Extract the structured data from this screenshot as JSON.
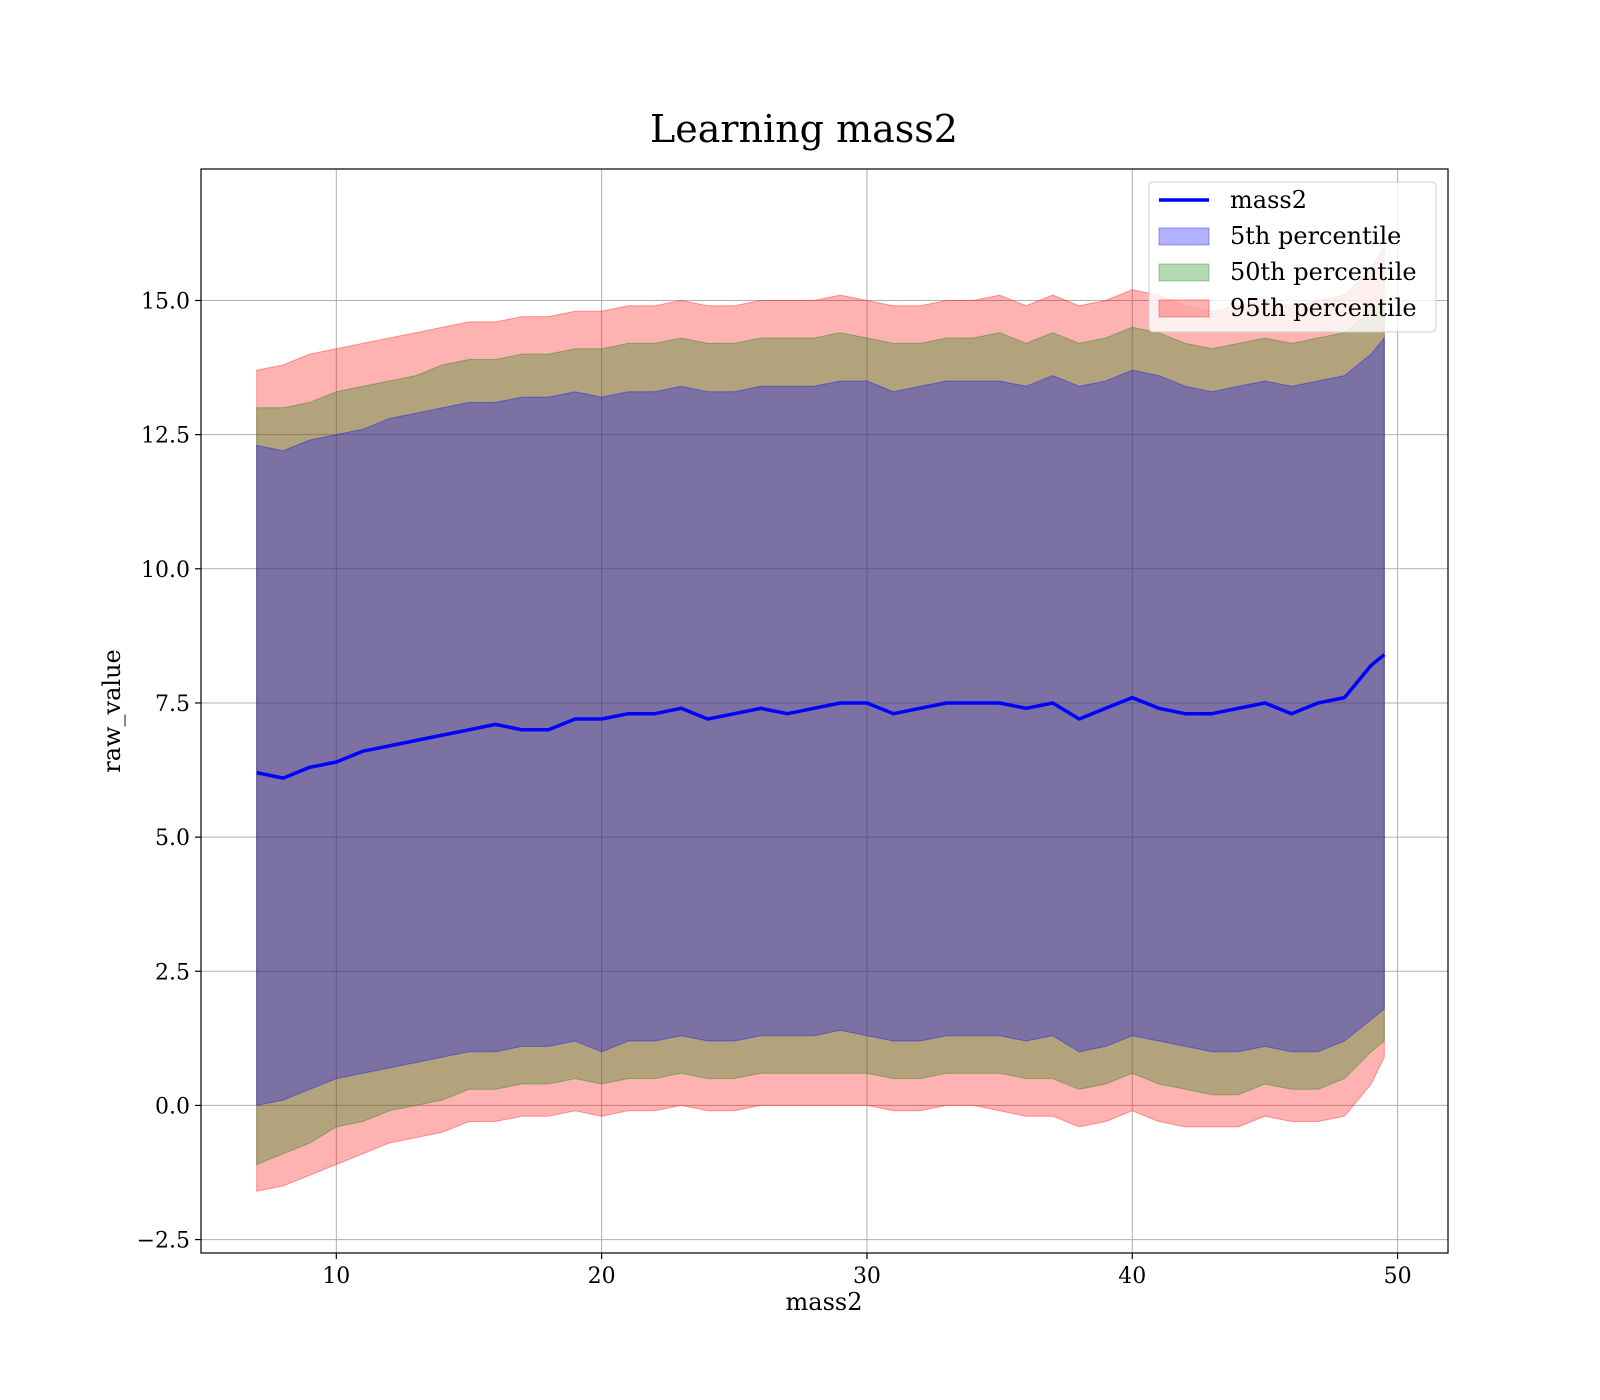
{
  "chart_data": {
    "type": "line",
    "title": "Learning mass2",
    "xlabel": "mass2",
    "ylabel": "raw_value",
    "xlim": [
      4.9,
      51.9
    ],
    "ylim": [
      -2.75,
      17.45
    ],
    "x_ticks": [
      10,
      20,
      30,
      40,
      50
    ],
    "x_tick_labels": [
      "10",
      "20",
      "30",
      "40",
      "50"
    ],
    "y_ticks": [
      -2.5,
      0.0,
      2.5,
      5.0,
      7.5,
      10.0,
      12.5,
      15.0
    ],
    "y_tick_labels": [
      "−2.5",
      "0.0",
      "2.5",
      "5.0",
      "7.5",
      "10.0",
      "12.5",
      "15.0"
    ],
    "grid": true,
    "legend_position": "top-right",
    "x": [
      7.0,
      8.0,
      9.0,
      10.0,
      11.0,
      12.0,
      13.0,
      14.0,
      15.0,
      16.0,
      17.0,
      18.0,
      19.0,
      20.0,
      21.0,
      22.0,
      23.0,
      24.0,
      25.0,
      26.0,
      27.0,
      28.0,
      29.0,
      30.0,
      31.0,
      32.0,
      33.0,
      34.0,
      35.0,
      36.0,
      37.0,
      38.0,
      39.0,
      40.0,
      41.0,
      42.0,
      43.0,
      44.0,
      45.0,
      46.0,
      47.0,
      48.0,
      49.0,
      49.5
    ],
    "series": [
      {
        "name": "mass2",
        "kind": "line",
        "color": "#0000ff",
        "values": [
          6.2,
          6.1,
          6.3,
          6.4,
          6.6,
          6.7,
          6.8,
          6.9,
          7.0,
          7.1,
          7.0,
          7.0,
          7.2,
          7.2,
          7.3,
          7.3,
          7.4,
          7.2,
          7.3,
          7.4,
          7.3,
          7.4,
          7.5,
          7.5,
          7.3,
          7.4,
          7.5,
          7.5,
          7.5,
          7.4,
          7.5,
          7.2,
          7.4,
          7.6,
          7.4,
          7.3,
          7.3,
          7.4,
          7.5,
          7.3,
          7.5,
          7.6,
          8.2,
          8.4
        ]
      },
      {
        "name": "5th percentile",
        "kind": "band",
        "color": "#0000ff",
        "lower": [
          0.0,
          0.1,
          0.3,
          0.5,
          0.6,
          0.7,
          0.8,
          0.9,
          1.0,
          1.0,
          1.1,
          1.1,
          1.2,
          1.0,
          1.2,
          1.2,
          1.3,
          1.2,
          1.2,
          1.3,
          1.3,
          1.3,
          1.4,
          1.3,
          1.2,
          1.2,
          1.3,
          1.3,
          1.3,
          1.2,
          1.3,
          1.0,
          1.1,
          1.3,
          1.2,
          1.1,
          1.0,
          1.0,
          1.1,
          1.0,
          1.0,
          1.2,
          1.6,
          1.8
        ],
        "upper": [
          12.3,
          12.2,
          12.4,
          12.5,
          12.6,
          12.8,
          12.9,
          13.0,
          13.1,
          13.1,
          13.2,
          13.2,
          13.3,
          13.2,
          13.3,
          13.3,
          13.4,
          13.3,
          13.3,
          13.4,
          13.4,
          13.4,
          13.5,
          13.5,
          13.3,
          13.4,
          13.5,
          13.5,
          13.5,
          13.4,
          13.6,
          13.4,
          13.5,
          13.7,
          13.6,
          13.4,
          13.3,
          13.4,
          13.5,
          13.4,
          13.5,
          13.6,
          14.0,
          14.3
        ]
      },
      {
        "name": "50th percentile",
        "kind": "band",
        "color": "#008000",
        "lower": [
          -1.1,
          -0.9,
          -0.7,
          -0.4,
          -0.3,
          -0.1,
          0.0,
          0.1,
          0.3,
          0.3,
          0.4,
          0.4,
          0.5,
          0.4,
          0.5,
          0.5,
          0.6,
          0.5,
          0.5,
          0.6,
          0.6,
          0.6,
          0.6,
          0.6,
          0.5,
          0.5,
          0.6,
          0.6,
          0.6,
          0.5,
          0.5,
          0.3,
          0.4,
          0.6,
          0.4,
          0.3,
          0.2,
          0.2,
          0.4,
          0.3,
          0.3,
          0.5,
          1.0,
          1.2
        ],
        "upper": [
          13.0,
          13.0,
          13.1,
          13.3,
          13.4,
          13.5,
          13.6,
          13.8,
          13.9,
          13.9,
          14.0,
          14.0,
          14.1,
          14.1,
          14.2,
          14.2,
          14.3,
          14.2,
          14.2,
          14.3,
          14.3,
          14.3,
          14.4,
          14.3,
          14.2,
          14.2,
          14.3,
          14.3,
          14.4,
          14.2,
          14.4,
          14.2,
          14.3,
          14.5,
          14.4,
          14.2,
          14.1,
          14.2,
          14.3,
          14.2,
          14.3,
          14.4,
          14.8,
          15.0
        ]
      },
      {
        "name": "95th percentile",
        "kind": "band",
        "color": "#ff0000",
        "lower": [
          -1.6,
          -1.5,
          -1.3,
          -1.1,
          -0.9,
          -0.7,
          -0.6,
          -0.5,
          -0.3,
          -0.3,
          -0.2,
          -0.2,
          -0.1,
          -0.2,
          -0.1,
          -0.1,
          0.0,
          -0.1,
          -0.1,
          0.0,
          0.0,
          0.0,
          0.0,
          0.0,
          -0.1,
          -0.1,
          0.0,
          0.0,
          -0.1,
          -0.2,
          -0.2,
          -0.4,
          -0.3,
          -0.1,
          -0.3,
          -0.4,
          -0.4,
          -0.4,
          -0.2,
          -0.3,
          -0.3,
          -0.2,
          0.4,
          0.9
        ],
        "upper": [
          13.7,
          13.8,
          14.0,
          14.1,
          14.2,
          14.3,
          14.4,
          14.5,
          14.6,
          14.6,
          14.7,
          14.7,
          14.8,
          14.8,
          14.9,
          14.9,
          15.0,
          14.9,
          14.9,
          15.0,
          15.0,
          15.0,
          15.1,
          15.0,
          14.9,
          14.9,
          15.0,
          15.0,
          15.1,
          14.9,
          15.1,
          14.9,
          15.0,
          15.2,
          15.1,
          14.9,
          14.8,
          14.9,
          15.0,
          14.9,
          15.0,
          15.1,
          15.6,
          16.0
        ]
      }
    ]
  }
}
